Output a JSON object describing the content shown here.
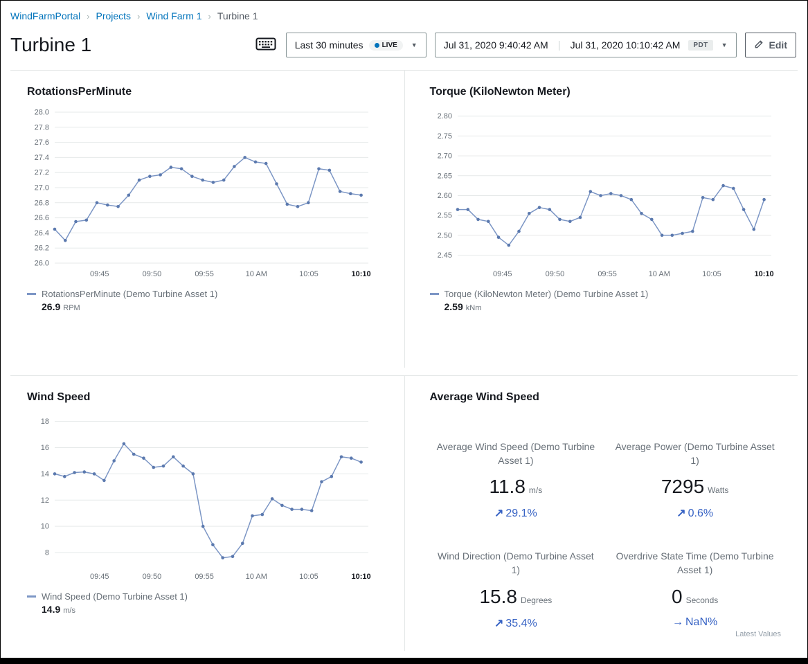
{
  "breadcrumb": {
    "items": [
      {
        "label": "WindFarmPortal"
      },
      {
        "label": "Projects"
      },
      {
        "label": "Wind Farm 1"
      },
      {
        "label": "Turbine 1"
      }
    ]
  },
  "header": {
    "title": "Turbine 1",
    "time_range_label": "Last 30 minutes",
    "live_label": "LIVE",
    "start_time": "Jul 31, 2020 9:40:42 AM",
    "end_time": "Jul 31, 2020 10:10:42 AM",
    "timezone": "PDT",
    "edit_label": "Edit"
  },
  "colors": {
    "line": "#7c96c5",
    "dot": "#5b79ae",
    "grid": "#e6e9e9",
    "tick": "#687078",
    "trend": "#3662c4",
    "link": "#0073bb"
  },
  "chart_data": [
    {
      "type": "line",
      "title": "RotationsPerMinute",
      "legend": "RotationsPerMinute (Demo Turbine Asset 1)",
      "latest_value": "26.9",
      "unit": "RPM",
      "ylim": [
        26.0,
        28.0
      ],
      "yticks": [
        "28.0",
        "27.8",
        "27.6",
        "27.4",
        "27.2",
        "27.0",
        "26.8",
        "26.6",
        "26.4",
        "26.2",
        "26.0"
      ],
      "xticks": [
        {
          "label": "09:45",
          "f": 0.143
        },
        {
          "label": "09:50",
          "f": 0.31
        },
        {
          "label": "09:55",
          "f": 0.477
        },
        {
          "label": "10 AM",
          "f": 0.643
        },
        {
          "label": "10:05",
          "f": 0.81
        },
        {
          "label": "10:10",
          "f": 0.977,
          "bold": true
        }
      ],
      "values": [
        26.45,
        26.3,
        26.55,
        26.57,
        26.8,
        26.77,
        26.75,
        26.9,
        27.1,
        27.15,
        27.17,
        27.27,
        27.25,
        27.15,
        27.1,
        27.07,
        27.1,
        27.28,
        27.4,
        27.34,
        27.32,
        27.05,
        26.78,
        26.75,
        26.8,
        27.25,
        27.23,
        26.95,
        26.92,
        26.9
      ]
    },
    {
      "type": "line",
      "title": "Torque (KiloNewton Meter)",
      "legend": "Torque (KiloNewton Meter) (Demo Turbine Asset 1)",
      "latest_value": "2.59",
      "unit": "kNm",
      "ylim": [
        2.43,
        2.81
      ],
      "yticks": [
        "2.80",
        "2.75",
        "2.70",
        "2.65",
        "2.60",
        "2.55",
        "2.50",
        "2.45"
      ],
      "xticks": [
        {
          "label": "09:45",
          "f": 0.143
        },
        {
          "label": "09:50",
          "f": 0.31
        },
        {
          "label": "09:55",
          "f": 0.477
        },
        {
          "label": "10 AM",
          "f": 0.643
        },
        {
          "label": "10:05",
          "f": 0.81
        },
        {
          "label": "10:10",
          "f": 0.977,
          "bold": true
        }
      ],
      "values": [
        2.565,
        2.565,
        2.54,
        2.535,
        2.495,
        2.475,
        2.51,
        2.555,
        2.57,
        2.565,
        2.54,
        2.535,
        2.545,
        2.61,
        2.6,
        2.605,
        2.6,
        2.59,
        2.555,
        2.54,
        2.5,
        2.5,
        2.505,
        2.51,
        2.595,
        2.59,
        2.625,
        2.618,
        2.565,
        2.515,
        2.59
      ]
    },
    {
      "type": "line",
      "title": "Wind Speed",
      "legend": "Wind Speed (Demo Turbine Asset 1)",
      "latest_value": "14.9",
      "unit": "m/s",
      "ylim": [
        7.0,
        18.3
      ],
      "yticks": [
        "18",
        "16",
        "14",
        "12",
        "10",
        "8"
      ],
      "xticks": [
        {
          "label": "09:45",
          "f": 0.143
        },
        {
          "label": "09:50",
          "f": 0.31
        },
        {
          "label": "09:55",
          "f": 0.477
        },
        {
          "label": "10 AM",
          "f": 0.643
        },
        {
          "label": "10:05",
          "f": 0.81
        },
        {
          "label": "10:10",
          "f": 0.977,
          "bold": true
        }
      ],
      "values": [
        14.0,
        13.8,
        14.1,
        14.15,
        14.0,
        13.5,
        15.0,
        16.3,
        15.5,
        15.2,
        14.5,
        14.6,
        15.3,
        14.6,
        14.0,
        10.0,
        8.6,
        7.6,
        7.7,
        8.7,
        10.8,
        10.9,
        12.1,
        11.6,
        11.3,
        11.3,
        11.2,
        13.4,
        13.8,
        15.3,
        15.2,
        14.9
      ]
    }
  ],
  "kpi_panel": {
    "title": "Average Wind Speed",
    "kpis": [
      {
        "label": "Average Wind Speed (Demo Turbine Asset 1)",
        "value": "11.8",
        "unit": "m/s",
        "arrow_glyph": "↗",
        "trend": "29.1%"
      },
      {
        "label": "Average Power (Demo Turbine Asset 1)",
        "value": "7295",
        "unit": "Watts",
        "arrow_glyph": "↗",
        "trend": "0.6%"
      },
      {
        "label": "Wind Direction (Demo Turbine Asset 1)",
        "value": "15.8",
        "unit": "Degrees",
        "arrow_glyph": "↗",
        "trend": "35.4%"
      },
      {
        "label": "Overdrive State Time (Demo Turbine Asset 1)",
        "value": "0",
        "unit": "Seconds",
        "arrow_glyph": "→",
        "trend": "NaN%"
      }
    ],
    "footer": "Latest Values"
  }
}
